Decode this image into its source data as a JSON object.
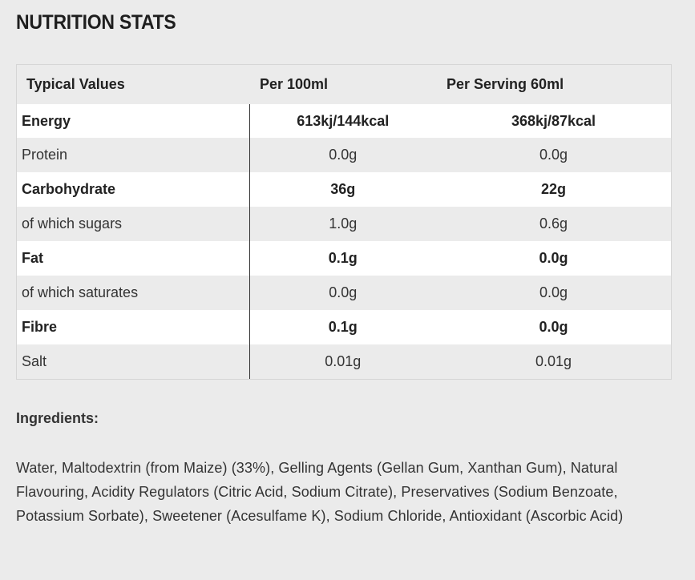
{
  "title": "NUTRITION STATS",
  "table": {
    "headers": [
      "Typical Values",
      "Per 100ml",
      "Per Serving 60ml"
    ],
    "rows": [
      {
        "name": "Energy",
        "per100": "613kj/144kcal",
        "perServing": "368kj/87kcal",
        "bold": true
      },
      {
        "name": "Protein",
        "per100": "0.0g",
        "perServing": "0.0g",
        "bold": false
      },
      {
        "name": "Carbohydrate",
        "per100": "36g",
        "perServing": "22g",
        "bold": true
      },
      {
        "name": "of which sugars",
        "per100": "1.0g",
        "perServing": "0.6g",
        "bold": false
      },
      {
        "name": "Fat",
        "per100": "0.1g",
        "perServing": "0.0g",
        "bold": true
      },
      {
        "name": "of which saturates",
        "per100": "0.0g",
        "perServing": "0.0g",
        "bold": false
      },
      {
        "name": "Fibre",
        "per100": "0.1g",
        "perServing": "0.0g",
        "bold": true
      },
      {
        "name": "Salt",
        "per100": "0.01g",
        "perServing": "0.01g",
        "bold": false
      }
    ]
  },
  "ingredients": {
    "heading": "Ingredients:",
    "text": "Water, Maltodextrin (from Maize) (33%), Gelling Agents (Gellan Gum, Xanthan Gum), Natural Flavouring, Acidity Regulators (Citric Acid, Sodium Citrate), Preservatives (Sodium Benzoate, Potassium Sorbate), Sweetener (Acesulfame K), Sodium Chloride, Antioxidant (Ascorbic Acid)"
  },
  "colors": {
    "background": "#ebebeb",
    "row_alt": "#ffffff",
    "text": "#333333",
    "heading": "#1e1e1e"
  }
}
